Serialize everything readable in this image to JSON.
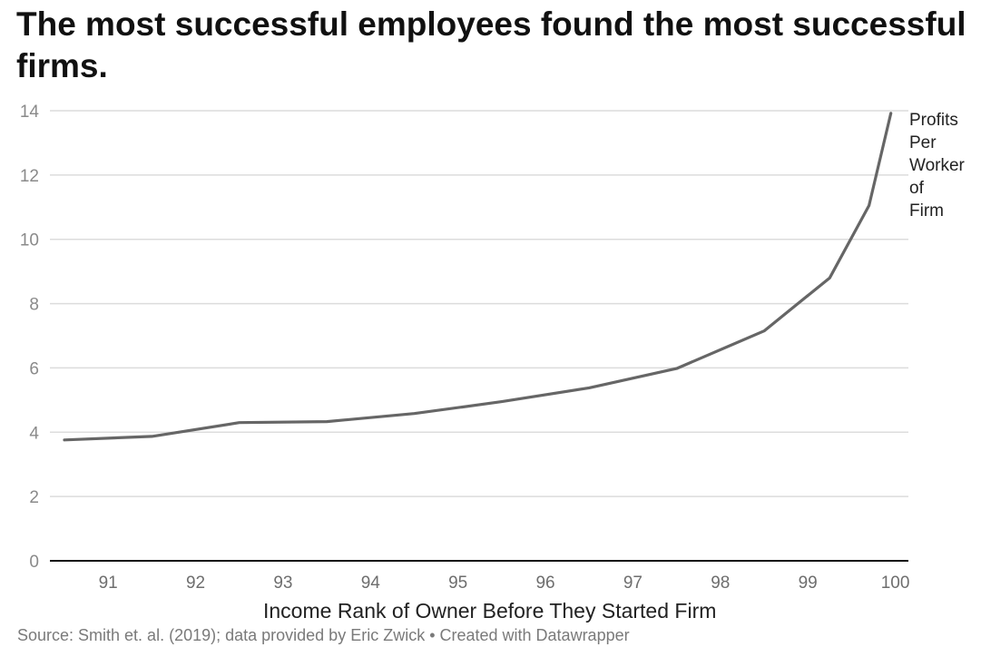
{
  "chart_data": {
    "type": "line",
    "title": "The most successful employees found the most successful firms.",
    "xlabel": "Income Rank of Owner Before They Started Firm",
    "ylabel": "",
    "x_ticks": [
      91,
      92,
      93,
      94,
      95,
      96,
      97,
      98,
      99,
      100
    ],
    "y_ticks": [
      0,
      2,
      4,
      6,
      8,
      10,
      12,
      14
    ],
    "xlim": [
      90.5,
      100.15
    ],
    "ylim": [
      0,
      14
    ],
    "grid": true,
    "series": [
      {
        "name": "Profits Per Worker of Firm",
        "label_lines": [
          "Profits",
          "Per",
          "Worker",
          "of",
          "Firm"
        ],
        "color": "#666666",
        "x": [
          90.5,
          91.5,
          92.5,
          93.5,
          94.5,
          95.5,
          96.5,
          97.5,
          98.5,
          99.25,
          99.7,
          99.95
        ],
        "y": [
          3.76,
          3.87,
          4.3,
          4.33,
          4.58,
          4.95,
          5.38,
          5.98,
          7.15,
          8.8,
          11.05,
          13.92
        ]
      }
    ]
  },
  "footer": "Source: Smith et. al. (2019); data provided by Eric Zwick • Created with Datawrapper"
}
